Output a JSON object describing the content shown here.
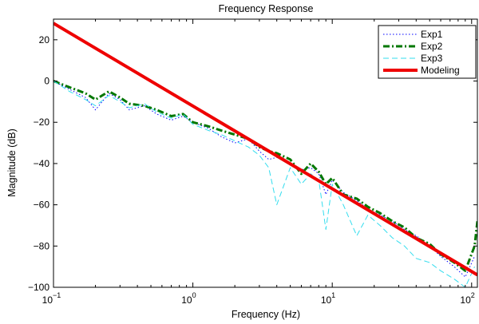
{
  "chart_data": {
    "type": "line",
    "title": "Frequency Response",
    "xlabel": "Frequency (Hz)",
    "ylabel": "Magnitude (dB)",
    "xscale": "log",
    "xlim": [
      0.1,
      110
    ],
    "ylim": [
      -100,
      30
    ],
    "grid": false,
    "legend_position": "top-right",
    "x_ticks": [
      {
        "value": 0.1,
        "base": "10",
        "exp": "−1"
      },
      {
        "value": 1,
        "base": "10",
        "exp": "0"
      },
      {
        "value": 10,
        "base": "10",
        "exp": "1"
      },
      {
        "value": 100,
        "base": "10",
        "exp": "2"
      }
    ],
    "y_ticks": [
      {
        "value": 20,
        "label": "20"
      },
      {
        "value": 0,
        "label": "0"
      },
      {
        "value": -20,
        "label": "−20"
      },
      {
        "value": -40,
        "label": "−40"
      },
      {
        "value": -60,
        "label": "−60"
      },
      {
        "value": -80,
        "label": "−80"
      },
      {
        "value": -100,
        "label": "−100"
      }
    ],
    "series": [
      {
        "name": "Exp1",
        "color": "#0000ff",
        "style": "dotted",
        "x": [
          0.1,
          0.13,
          0.17,
          0.2,
          0.25,
          0.3,
          0.35,
          0.45,
          0.55,
          0.7,
          0.85,
          1.0,
          1.3,
          1.6,
          2.0,
          2.5,
          3.0,
          3.5,
          4.0,
          5.0,
          6.0,
          7.0,
          8.0,
          9.0,
          10,
          12,
          15,
          18,
          22,
          27,
          33,
          40,
          50,
          60,
          75,
          90,
          105
        ],
        "y": [
          0,
          -4,
          -8,
          -14,
          -6,
          -9,
          -14,
          -12,
          -16,
          -19,
          -17,
          -20,
          -23,
          -27,
          -30,
          -28,
          -34,
          -38,
          -37,
          -40,
          -43,
          -42,
          -45,
          -55,
          -48,
          -54,
          -58,
          -62,
          -65,
          -68,
          -72,
          -75,
          -80,
          -85,
          -90,
          -95,
          -85
        ]
      },
      {
        "name": "Exp2",
        "color": "#007700",
        "style": "dashdot",
        "x": [
          0.1,
          0.13,
          0.17,
          0.2,
          0.25,
          0.3,
          0.35,
          0.45,
          0.55,
          0.7,
          0.85,
          1.0,
          1.3,
          1.6,
          2.0,
          2.5,
          3.0,
          3.5,
          4.0,
          5.0,
          6.0,
          7.0,
          8.0,
          9.0,
          10,
          12,
          15,
          18,
          22,
          27,
          33,
          40,
          50,
          60,
          75,
          90,
          105,
          110
        ],
        "y": [
          0,
          -3,
          -6,
          -9,
          -5,
          -8,
          -11,
          -12,
          -14,
          -17,
          -16,
          -20,
          -22,
          -24,
          -26,
          -28,
          -32,
          -34,
          -35,
          -38,
          -45,
          -40,
          -44,
          -50,
          -47,
          -55,
          -57,
          -61,
          -64,
          -68,
          -71,
          -76,
          -79,
          -84,
          -88,
          -92,
          -80,
          -68
        ]
      },
      {
        "name": "Exp3",
        "color": "#33ddee",
        "style": "dashed",
        "x": [
          0.1,
          0.13,
          0.17,
          0.2,
          0.25,
          0.3,
          0.35,
          0.45,
          0.55,
          0.7,
          0.85,
          1.0,
          1.3,
          1.6,
          2.0,
          2.5,
          3.0,
          3.5,
          4.0,
          5.0,
          6.0,
          7.0,
          8.0,
          9.0,
          10,
          12,
          15,
          18,
          22,
          27,
          33,
          40,
          50,
          60,
          75,
          90,
          105
        ],
        "y": [
          0,
          -5,
          -9,
          -12,
          -7,
          -10,
          -13,
          -11,
          -15,
          -18,
          -16,
          -21,
          -24,
          -26,
          -29,
          -32,
          -36,
          -42,
          -60,
          -42,
          -50,
          -45,
          -48,
          -72,
          -50,
          -60,
          -75,
          -65,
          -70,
          -76,
          -80,
          -86,
          -88,
          -92,
          -96,
          -100,
          -90
        ]
      },
      {
        "name": "Modeling",
        "color": "#ee0000",
        "style": "solid",
        "x": [
          0.1,
          110
        ],
        "y": [
          28,
          -94
        ]
      }
    ]
  }
}
